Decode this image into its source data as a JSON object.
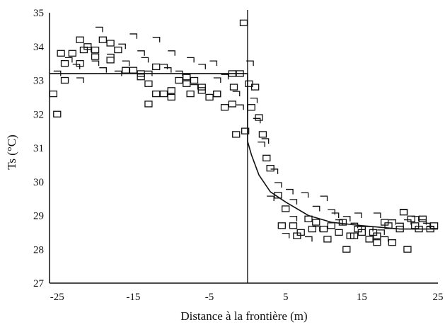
{
  "chart_data": {
    "type": "scatter",
    "title": "",
    "xlabel": "Distance à la frontière (m)",
    "ylabel": "Ts (°C)",
    "xlim": [
      -26,
      25
    ],
    "ylim": [
      27,
      35
    ],
    "xticks": [
      -25,
      -15,
      -5,
      5,
      15,
      25
    ],
    "xtick_labels": [
      "-25",
      "-15",
      "-5",
      "5",
      "15",
      "25"
    ],
    "yticks": [
      27,
      28,
      29,
      30,
      31,
      32,
      33,
      34,
      35
    ],
    "ytick_labels": [
      "27",
      "28",
      "29",
      "30",
      "31",
      "32",
      "33",
      "34",
      "35"
    ],
    "grid": false,
    "boundary_x": 0,
    "fit_line": {
      "x": [
        -26,
        0,
        0,
        0.5,
        1.5,
        3,
        5,
        8,
        11,
        15,
        20,
        25
      ],
      "y": [
        33.2,
        33.2,
        31.2,
        30.8,
        30.2,
        29.7,
        29.4,
        29.0,
        28.8,
        28.7,
        28.6,
        28.6
      ]
    },
    "series": [
      {
        "marker": "square",
        "x": [
          -25.5,
          -25,
          -24,
          -23,
          -22,
          -21.5,
          -21,
          -20,
          -19,
          -18,
          -17,
          -16,
          -15,
          -14,
          -13,
          -12,
          -11,
          -10,
          -9,
          -8,
          -7,
          -6,
          -5,
          -4,
          -3,
          -2,
          -1,
          -24,
          -22,
          -20,
          -18,
          -16,
          -14,
          -12,
          -10,
          -8,
          -6,
          -4,
          -2,
          -1.5,
          -0.5,
          -0.3,
          0.2,
          0.5,
          1,
          1.5,
          2,
          2.5,
          3,
          4,
          5,
          6,
          7,
          8,
          9,
          10,
          11,
          12,
          13,
          14,
          15,
          16,
          17,
          18,
          19,
          20,
          21,
          22,
          23,
          24,
          4.5,
          6.5,
          8.5,
          10.5,
          12.5,
          14.5,
          16.5,
          18.5,
          20.5,
          22.5,
          24.5,
          13.5,
          17,
          21.5,
          -13,
          -7.5,
          -24.5,
          -1.8
        ],
        "y": [
          32.6,
          32.0,
          33.5,
          33.8,
          34.2,
          33.9,
          34.0,
          33.7,
          34.2,
          34.1,
          33.9,
          33.3,
          33.3,
          33.2,
          32.9,
          32.6,
          32.6,
          32.7,
          33.0,
          33.1,
          33.0,
          32.8,
          32.5,
          32.6,
          32.2,
          32.3,
          33.2,
          33.0,
          33.5,
          33.9,
          33.6,
          33.3,
          33.1,
          33.4,
          32.5,
          32.9,
          32.7,
          32.6,
          33.2,
          31.4,
          34.7,
          31.5,
          32.9,
          32.2,
          32.8,
          31.9,
          31.4,
          30.7,
          30.4,
          29.6,
          29.2,
          28.7,
          28.5,
          28.9,
          28.8,
          28.6,
          28.7,
          28.5,
          28.0,
          28.4,
          28.5,
          28.3,
          28.4,
          28.8,
          28.2,
          28.6,
          28.0,
          28.7,
          28.9,
          28.6,
          28.7,
          28.4,
          28.6,
          28.3,
          28.8,
          28.6,
          28.5,
          28.7,
          29.1,
          28.6,
          28.7,
          28.4,
          28.2,
          28.9,
          32.3,
          32.6,
          33.8,
          32.8
        ]
      },
      {
        "marker": "corner",
        "x": [
          -23.5,
          -22.5,
          -21,
          -19.5,
          -18,
          -16.5,
          -15,
          -13.5,
          -12,
          -10.5,
          -9,
          -7.5,
          -6,
          -4.5,
          -3,
          -1.5,
          -25,
          -22,
          -19,
          -16,
          -13,
          -10,
          -7,
          -4,
          -1,
          0.3,
          0.8,
          1.2,
          1.8,
          2.3,
          3.5,
          4,
          5.5,
          6,
          7.5,
          9,
          10,
          11.5,
          13,
          14.5,
          16,
          17.5,
          19,
          20.5,
          22,
          23.5,
          5,
          8,
          11,
          14,
          17,
          20,
          23,
          3,
          6,
          9,
          12,
          15,
          18,
          21,
          24,
          -20,
          -17,
          -14,
          -11,
          -8
        ],
        "y": [
          33.6,
          33.4,
          33.9,
          34.5,
          33.7,
          34.0,
          34.3,
          33.6,
          34.2,
          33.3,
          33.2,
          33.6,
          33.4,
          33.5,
          33.1,
          32.6,
          33.2,
          33.0,
          33.3,
          33.5,
          33.2,
          33.8,
          32.8,
          33.0,
          32.2,
          33.5,
          32.4,
          31.8,
          31.1,
          31.2,
          30.3,
          29.9,
          29.7,
          29.4,
          29.6,
          29.2,
          29.5,
          29.0,
          28.9,
          29.0,
          28.6,
          28.5,
          28.8,
          29.1,
          28.9,
          28.7,
          28.4,
          28.3,
          29.1,
          28.7,
          29.0,
          28.7,
          28.8,
          29.5,
          28.9,
          28.6,
          28.8,
          28.6,
          28.3,
          28.8,
          28.6,
          33.5,
          33.2,
          33.8,
          33.4,
          33.1
        ]
      }
    ]
  }
}
